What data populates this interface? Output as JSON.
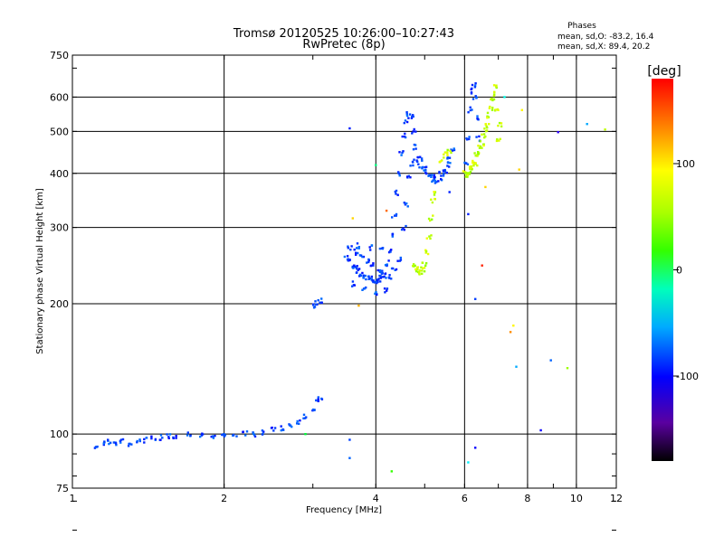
{
  "chart_data": {
    "type": "scatter",
    "title": "Tromsø 20120525 10:26:00–10:27:43",
    "subtitle": "RwPretec (8p)",
    "phases": {
      "heading": "Phases",
      "line_o": "mean, sd,O: -83.2, 16.4",
      "line_x": "mean, sd,X:  89.4, 20.2"
    },
    "xlabel": "Frequency [MHz]",
    "ylabel": "Stationary phase Virtual Height [km]",
    "xscale": "log",
    "yscale": "log",
    "xlim": [
      1,
      12
    ],
    "ylim": [
      75,
      750
    ],
    "xticks": [
      1,
      2,
      4,
      6,
      8,
      10,
      12
    ],
    "xtick_labels": [
      "1",
      "2",
      "4",
      "6",
      "8",
      "10",
      "12"
    ],
    "yticks": [
      75,
      100,
      200,
      300,
      400,
      500,
      600,
      750
    ],
    "ytick_labels": [
      "75",
      "100",
      "200",
      "300",
      "400",
      "500",
      "600",
      "750"
    ],
    "grid": true,
    "colorbar": {
      "label": "[deg]",
      "range": [
        -180,
        180
      ],
      "ticks": [
        100,
        0,
        -100
      ],
      "tick_labels": [
        "100",
        "0",
        "-100"
      ]
    },
    "series": [
      {
        "trace": "o-mode",
        "phase_deg": -90,
        "points": [
          [
            1.12,
            94
          ],
          [
            1.15,
            95
          ],
          [
            1.18,
            96
          ],
          [
            1.22,
            95
          ],
          [
            1.25,
            96
          ],
          [
            1.3,
            95
          ],
          [
            1.35,
            96
          ],
          [
            1.4,
            97
          ],
          [
            1.45,
            98
          ],
          [
            1.5,
            98
          ],
          [
            1.55,
            99
          ],
          [
            1.6,
            99
          ],
          [
            1.7,
            100
          ],
          [
            1.8,
            100
          ],
          [
            1.9,
            99
          ],
          [
            2.0,
            99
          ],
          [
            2.1,
            100
          ],
          [
            2.2,
            100
          ],
          [
            2.3,
            100
          ],
          [
            2.4,
            101
          ],
          [
            2.5,
            102
          ],
          [
            2.6,
            103
          ],
          [
            2.7,
            105
          ],
          [
            2.8,
            107
          ],
          [
            2.9,
            110
          ],
          [
            3.0,
            113
          ],
          [
            3.05,
            118
          ],
          [
            3.1,
            121
          ],
          [
            3.0,
            197
          ],
          [
            3.05,
            201
          ],
          [
            3.1,
            203
          ],
          [
            3.5,
            255
          ],
          [
            3.55,
            250
          ],
          [
            3.6,
            245
          ],
          [
            3.65,
            242
          ],
          [
            3.7,
            238
          ],
          [
            3.75,
            235
          ],
          [
            3.8,
            232
          ],
          [
            3.85,
            230
          ],
          [
            3.9,
            228
          ],
          [
            3.95,
            226
          ],
          [
            4.0,
            225
          ],
          [
            4.05,
            226
          ],
          [
            4.1,
            229
          ],
          [
            4.15,
            236
          ],
          [
            4.2,
            248
          ],
          [
            4.25,
            265
          ],
          [
            4.3,
            290
          ],
          [
            4.35,
            320
          ],
          [
            4.4,
            360
          ],
          [
            4.45,
            400
          ],
          [
            4.5,
            445
          ],
          [
            4.55,
            490
          ],
          [
            4.6,
            530
          ],
          [
            4.65,
            550
          ],
          [
            4.7,
            540
          ],
          [
            4.75,
            500
          ],
          [
            4.8,
            460
          ],
          [
            4.9,
            430
          ],
          [
            5.0,
            410
          ],
          [
            5.1,
            395
          ],
          [
            5.2,
            388
          ],
          [
            5.3,
            385
          ],
          [
            5.4,
            390
          ],
          [
            5.5,
            405
          ],
          [
            5.6,
            430
          ],
          [
            5.7,
            450
          ],
          [
            3.55,
            268
          ],
          [
            3.65,
            263
          ],
          [
            3.75,
            258
          ],
          [
            3.85,
            252
          ],
          [
            3.95,
            245
          ],
          [
            4.05,
            238
          ],
          [
            4.15,
            232
          ],
          [
            4.25,
            230
          ],
          [
            4.35,
            238
          ],
          [
            4.45,
            252
          ],
          [
            4.55,
            300
          ],
          [
            4.6,
            340
          ],
          [
            4.65,
            390
          ],
          [
            4.7,
            420
          ],
          [
            4.8,
            430
          ],
          [
            4.9,
            415
          ],
          [
            5.0,
            402
          ],
          [
            5.2,
            395
          ],
          [
            5.4,
            400
          ],
          [
            5.6,
            420
          ],
          [
            3.6,
            222
          ],
          [
            3.8,
            218
          ],
          [
            4.0,
            212
          ],
          [
            4.2,
            214
          ],
          [
            3.7,
            272
          ],
          [
            3.9,
            270
          ],
          [
            4.1,
            268
          ],
          [
            6.05,
            420
          ],
          [
            6.1,
            480
          ],
          [
            6.15,
            560
          ],
          [
            6.2,
            620
          ],
          [
            6.25,
            640
          ],
          [
            6.3,
            600
          ],
          [
            6.35,
            540
          ],
          [
            6.4,
            480
          ]
        ]
      },
      {
        "trace": "x-mode",
        "phase_deg": 90,
        "points": [
          [
            4.75,
            245
          ],
          [
            4.8,
            240
          ],
          [
            4.85,
            238
          ],
          [
            4.9,
            236
          ],
          [
            4.95,
            240
          ],
          [
            5.0,
            248
          ],
          [
            5.05,
            262
          ],
          [
            5.1,
            285
          ],
          [
            5.15,
            315
          ],
          [
            5.2,
            345
          ],
          [
            5.25,
            360
          ],
          [
            5.4,
            430
          ],
          [
            5.5,
            445
          ],
          [
            5.6,
            452
          ],
          [
            6.0,
            400
          ],
          [
            6.05,
            395
          ],
          [
            6.1,
            398
          ],
          [
            6.2,
            405
          ],
          [
            6.3,
            420
          ],
          [
            6.4,
            440
          ],
          [
            6.5,
            470
          ],
          [
            6.6,
            505
          ],
          [
            6.7,
            545
          ],
          [
            6.8,
            590
          ],
          [
            6.9,
            630
          ],
          [
            6.15,
            410
          ],
          [
            6.25,
            425
          ],
          [
            6.35,
            445
          ],
          [
            6.45,
            462
          ],
          [
            6.55,
            488
          ],
          [
            6.65,
            520
          ],
          [
            6.75,
            565
          ],
          [
            6.85,
            610
          ],
          [
            7.0,
            480
          ],
          [
            7.05,
            520
          ],
          [
            6.95,
            560
          ]
        ]
      },
      {
        "trace": "scatter",
        "points": [
          [
            3.55,
            508,
            -100
          ],
          [
            3.6,
            315,
            120
          ],
          [
            3.7,
            198,
            130
          ],
          [
            3.55,
            97,
            -90
          ],
          [
            3.55,
            88,
            -80
          ],
          [
            4.0,
            418,
            0
          ],
          [
            4.2,
            328,
            150
          ],
          [
            4.3,
            82,
            50
          ],
          [
            5.6,
            362,
            -100
          ],
          [
            6.1,
            322,
            -100
          ],
          [
            6.1,
            86,
            -40
          ],
          [
            6.3,
            205,
            -90
          ],
          [
            6.3,
            93,
            -110
          ],
          [
            6.5,
            245,
            170
          ],
          [
            6.6,
            372,
            120
          ],
          [
            7.2,
            600,
            -30
          ],
          [
            7.4,
            172,
            140
          ],
          [
            7.5,
            178,
            110
          ],
          [
            7.6,
            143,
            -60
          ],
          [
            7.7,
            408,
            120
          ],
          [
            7.8,
            560,
            110
          ],
          [
            8.5,
            102,
            -110
          ],
          [
            8.9,
            148,
            -80
          ],
          [
            9.2,
            498,
            -120
          ],
          [
            9.6,
            142,
            80
          ],
          [
            10.5,
            520,
            -60
          ],
          [
            11.4,
            505,
            90
          ],
          [
            2.9,
            100,
            20
          ]
        ]
      }
    ]
  }
}
